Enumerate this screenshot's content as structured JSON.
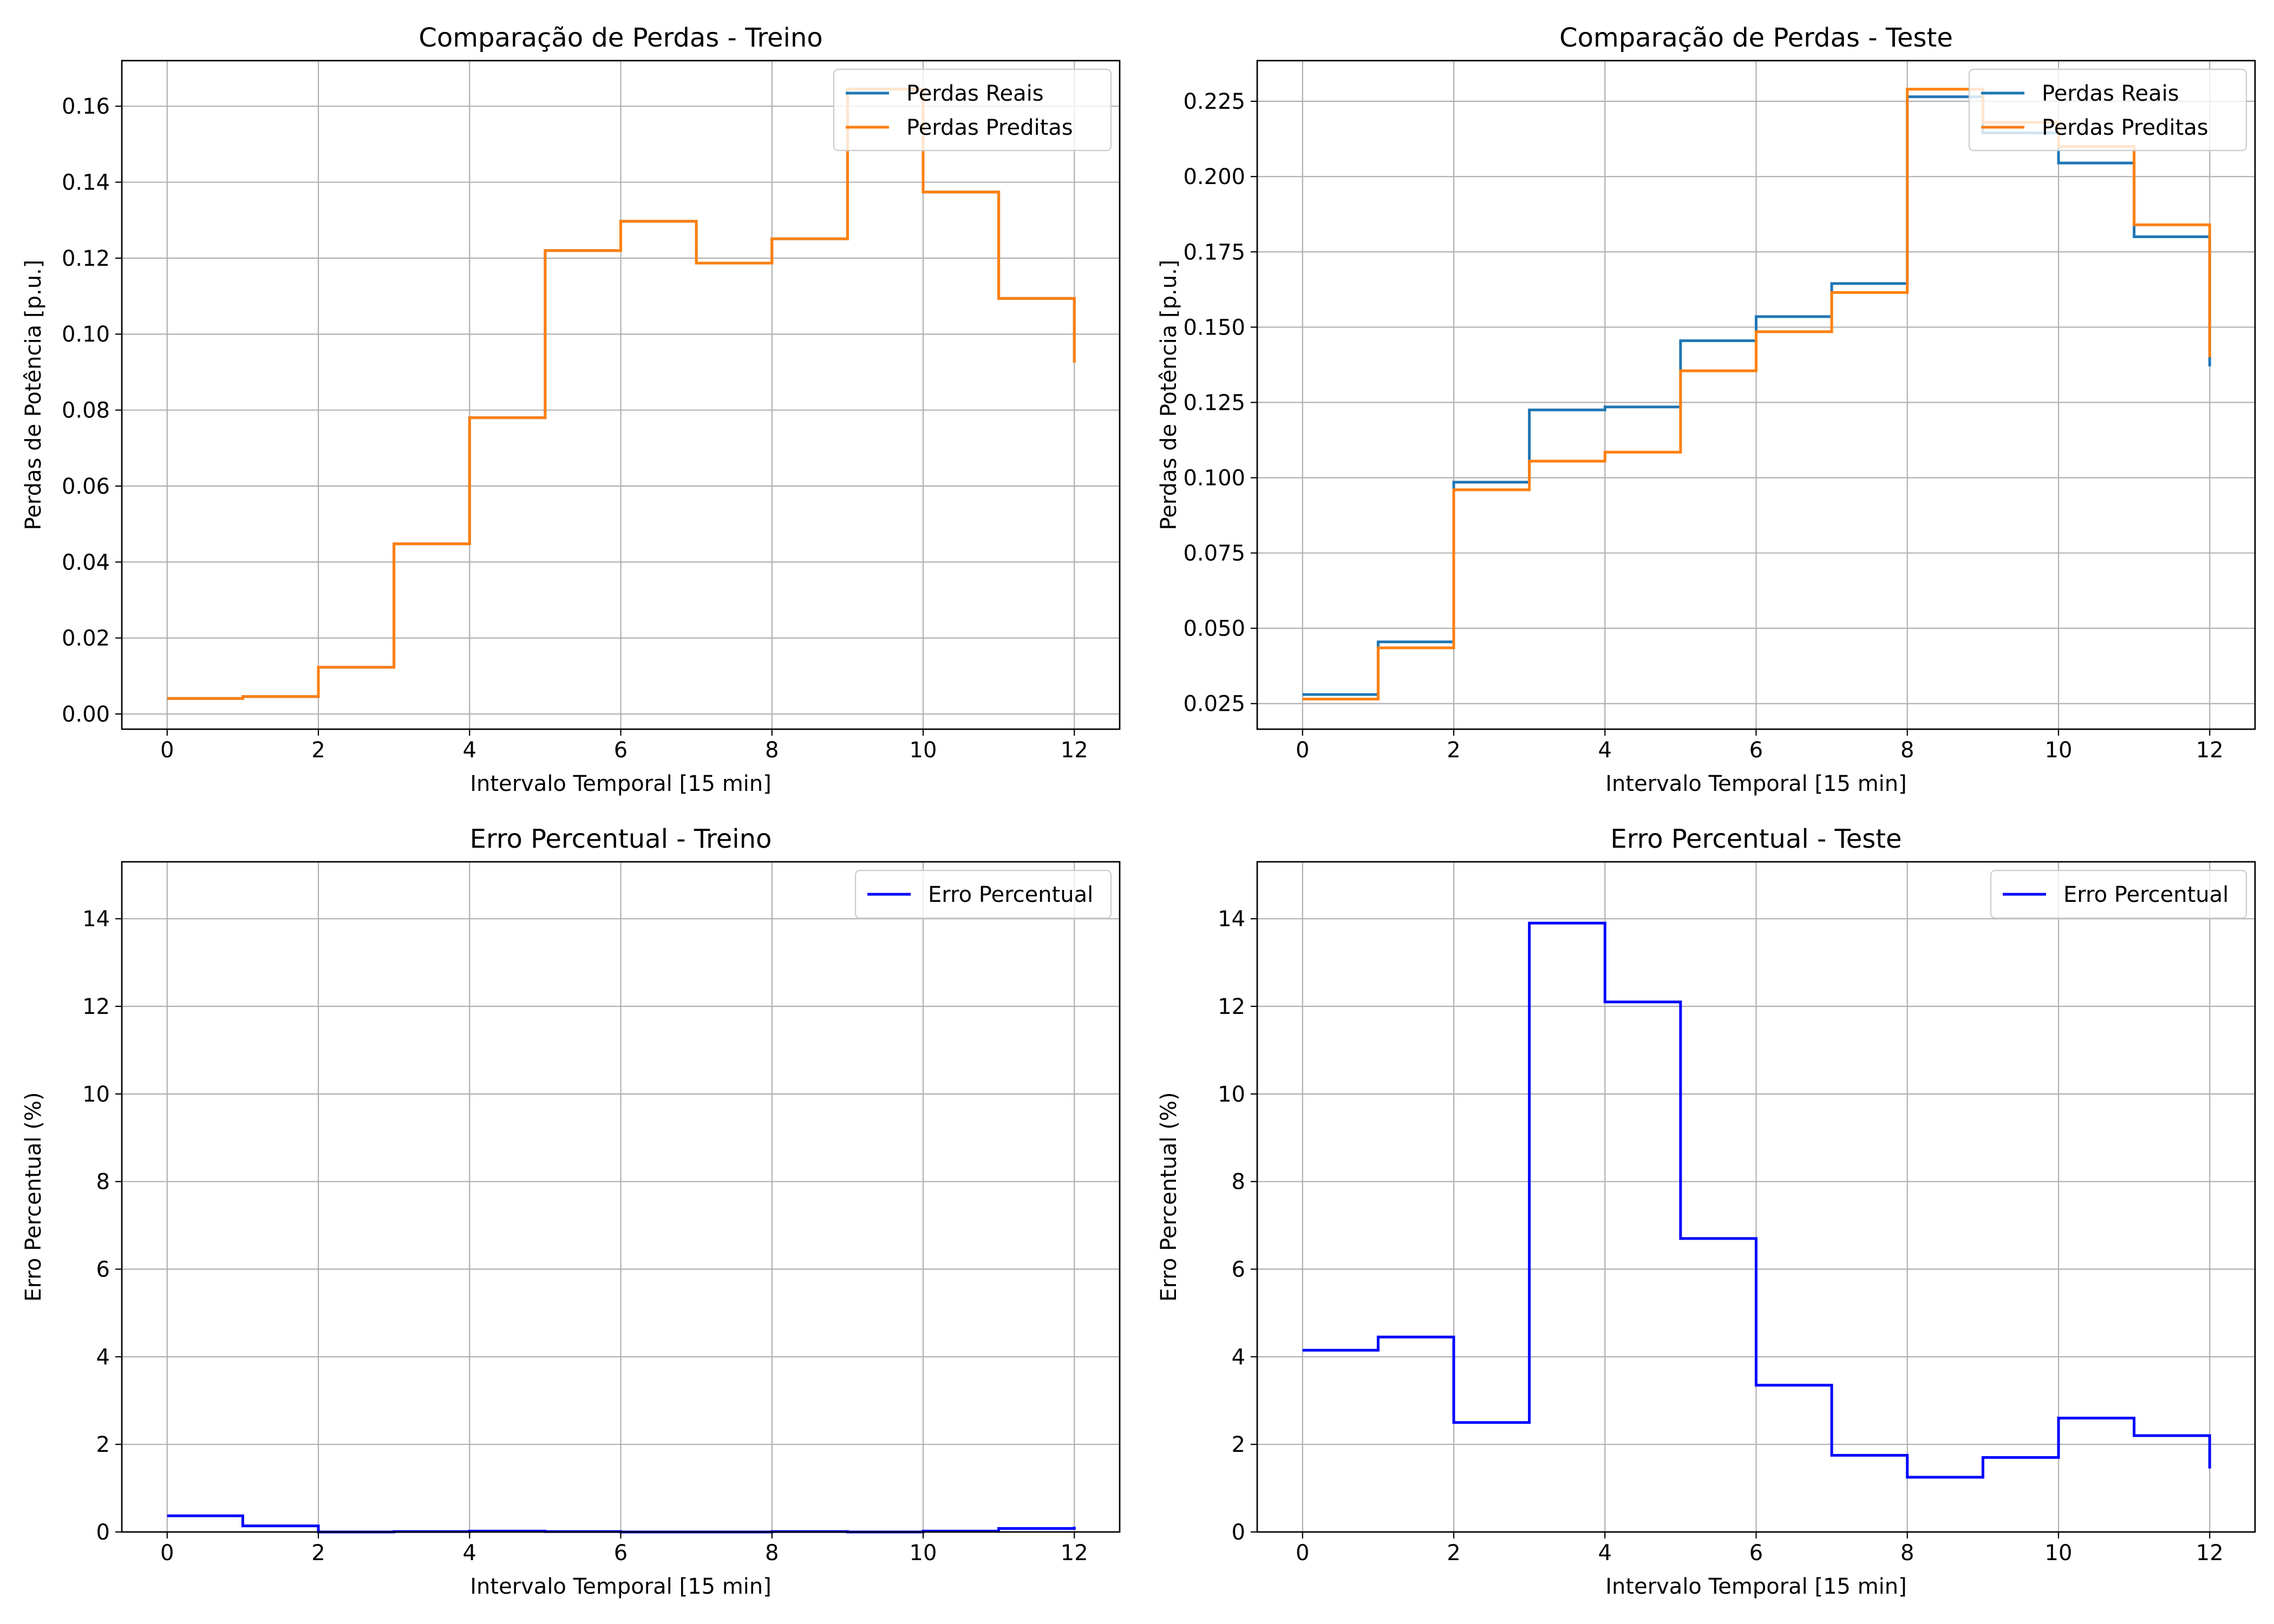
{
  "chart_data": [
    {
      "type": "line",
      "step": "post",
      "title": "Comparação de Perdas - Treino",
      "xlabel": "Intervalo Temporal [15 min]",
      "ylabel": "Perdas de Potência [p.u.]",
      "xlim": [
        -0.6,
        12.6
      ],
      "ylim": [
        -0.004,
        0.172
      ],
      "xticks": [
        0,
        2,
        4,
        6,
        8,
        10,
        12
      ],
      "yticks": [
        0.0,
        0.02,
        0.04,
        0.06,
        0.08,
        0.1,
        0.12,
        0.14,
        0.16
      ],
      "ytick_labels": [
        "0.00",
        "0.02",
        "0.04",
        "0.06",
        "0.08",
        "0.10",
        "0.12",
        "0.14",
        "0.16"
      ],
      "grid": true,
      "legend_position": "top-right",
      "x": [
        0,
        1,
        2,
        3,
        4,
        5,
        6,
        7,
        8,
        9,
        10,
        11,
        12
      ],
      "series": [
        {
          "name": "Perdas Reais",
          "color": "#1f77b4",
          "values": [
            0.0041,
            0.0046,
            0.0123,
            0.0448,
            0.078,
            0.122,
            0.1297,
            0.1187,
            0.1251,
            0.1645,
            0.1374,
            0.1094,
            0.0925
          ]
        },
        {
          "name": "Perdas Preditas",
          "color": "#ff7f0e",
          "values": [
            0.0041,
            0.0046,
            0.0123,
            0.0448,
            0.078,
            0.122,
            0.1297,
            0.1187,
            0.1251,
            0.1645,
            0.1374,
            0.1094,
            0.0925
          ]
        }
      ]
    },
    {
      "type": "line",
      "step": "post",
      "title": "Comparação de Perdas - Teste",
      "xlabel": "Intervalo Temporal [15 min]",
      "ylabel": "Perdas de Potência [p.u.]",
      "xlim": [
        -0.6,
        12.6
      ],
      "ylim": [
        0.0165,
        0.2385
      ],
      "xticks": [
        0,
        2,
        4,
        6,
        8,
        10,
        12
      ],
      "yticks": [
        0.025,
        0.05,
        0.075,
        0.1,
        0.125,
        0.15,
        0.175,
        0.2,
        0.225
      ],
      "ytick_labels": [
        "0.025",
        "0.050",
        "0.075",
        "0.100",
        "0.125",
        "0.150",
        "0.175",
        "0.200",
        "0.225"
      ],
      "grid": true,
      "legend_position": "top-right",
      "x": [
        0,
        1,
        2,
        3,
        4,
        5,
        6,
        7,
        8,
        9,
        10,
        11,
        12
      ],
      "series": [
        {
          "name": "Perdas Reais",
          "color": "#1f77b4",
          "values": [
            0.028,
            0.0455,
            0.0985,
            0.1225,
            0.1235,
            0.1455,
            0.1535,
            0.1645,
            0.2265,
            0.2145,
            0.2045,
            0.18,
            0.137
          ]
        },
        {
          "name": "Perdas Preditas",
          "color": "#ff7f0e",
          "values": [
            0.0265,
            0.0435,
            0.096,
            0.1055,
            0.1085,
            0.1355,
            0.1485,
            0.1615,
            0.229,
            0.218,
            0.21,
            0.184,
            0.14
          ]
        }
      ]
    },
    {
      "type": "line",
      "step": "post",
      "title": "Erro Percentual - Treino",
      "xlabel": "Intervalo Temporal [15 min]",
      "ylabel": "Erro Percentual (%)",
      "xlim": [
        -0.6,
        12.6
      ],
      "ylim": [
        0,
        15.3
      ],
      "xticks": [
        0,
        2,
        4,
        6,
        8,
        10,
        12
      ],
      "yticks": [
        0,
        2,
        4,
        6,
        8,
        10,
        12,
        14
      ],
      "ytick_labels": [
        "0",
        "2",
        "4",
        "6",
        "8",
        "10",
        "12",
        "14"
      ],
      "grid": true,
      "legend_position": "top-right",
      "x": [
        0,
        1,
        2,
        3,
        4,
        5,
        6,
        7,
        8,
        9,
        10,
        11,
        12
      ],
      "series": [
        {
          "name": "Erro Percentual",
          "color": "#0000ff",
          "values": [
            0.37,
            0.14,
            0.0,
            0.01,
            0.02,
            0.01,
            0.0,
            0.0,
            0.01,
            0.0,
            0.02,
            0.08,
            0.12
          ]
        }
      ]
    },
    {
      "type": "line",
      "step": "post",
      "title": "Erro Percentual - Teste",
      "xlabel": "Intervalo Temporal [15 min]",
      "ylabel": "Erro Percentual (%)",
      "xlim": [
        -0.6,
        12.6
      ],
      "ylim": [
        0,
        15.3
      ],
      "xticks": [
        0,
        2,
        4,
        6,
        8,
        10,
        12
      ],
      "yticks": [
        0,
        2,
        4,
        6,
        8,
        10,
        12,
        14
      ],
      "ytick_labels": [
        "0",
        "2",
        "4",
        "6",
        "8",
        "10",
        "12",
        "14"
      ],
      "grid": true,
      "legend_position": "top-right",
      "x": [
        0,
        1,
        2,
        3,
        4,
        5,
        6,
        7,
        8,
        9,
        10,
        11,
        12
      ],
      "series": [
        {
          "name": "Erro Percentual",
          "color": "#0000ff",
          "values": [
            4.15,
            4.45,
            2.5,
            13.9,
            12.1,
            6.7,
            3.35,
            1.75,
            1.25,
            1.7,
            2.6,
            2.2,
            1.45
          ]
        }
      ]
    }
  ]
}
